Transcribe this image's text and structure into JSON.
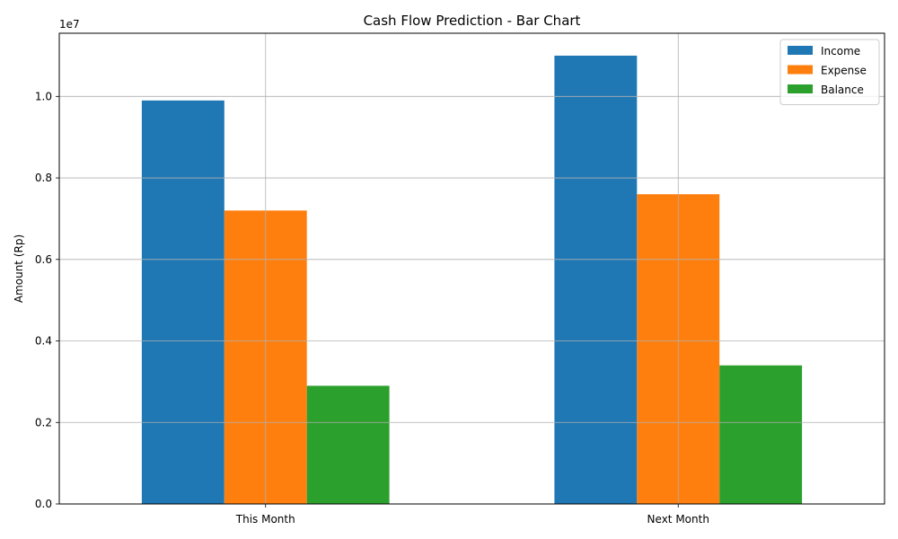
{
  "chart_data": {
    "type": "bar",
    "title": "Cash Flow Prediction - Bar Chart",
    "xlabel": "",
    "ylabel": "Amount (Rp)",
    "offset_label": "1e7",
    "categories": [
      "This Month",
      "Next Month"
    ],
    "series": [
      {
        "name": "Income",
        "values": [
          9900000,
          11000000
        ],
        "color": "#1f77b4"
      },
      {
        "name": "Expense",
        "values": [
          7200000,
          7600000
        ],
        "color": "#ff7f0e"
      },
      {
        "name": "Balance",
        "values": [
          2900000,
          3400000
        ],
        "color": "#2ca02c"
      }
    ],
    "ylim": [
      0,
      11550000
    ],
    "y_ticks": [
      0,
      2000000,
      4000000,
      6000000,
      8000000,
      10000000
    ],
    "y_tick_labels": [
      "0.0",
      "0.2",
      "0.4",
      "0.6",
      "0.8",
      "1.0"
    ],
    "grid": true,
    "legend_position": "top-right"
  }
}
